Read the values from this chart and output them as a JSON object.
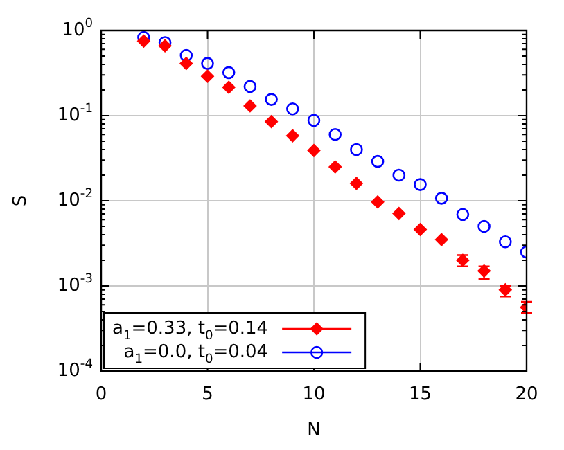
{
  "chart_data": {
    "type": "scatter",
    "xlabel": "N",
    "ylabel": "S",
    "log": "y",
    "xlim": [
      0,
      20
    ],
    "xticks": [
      0,
      5,
      10,
      15,
      20
    ],
    "ylim": [
      0.0001,
      1
    ],
    "yticks": [
      {
        "value": 1,
        "label": "10$^{0}$"
      },
      {
        "value": 0.1,
        "label": "10$^{-1}$"
      },
      {
        "value": 0.01,
        "label": "10$^{-2}$"
      },
      {
        "value": 0.001,
        "label": "10$^{-3}$"
      },
      {
        "value": 0.0001,
        "label": "10$^{-4}$"
      }
    ],
    "grid": true,
    "legend": "bottom left",
    "x": [
      2,
      3,
      4,
      5,
      6,
      7,
      8,
      9,
      10,
      11,
      12,
      13,
      14,
      15,
      16,
      17,
      18,
      19,
      20
    ],
    "series": [
      {
        "name": "a$_{1}$=0.33, t$_{0}$=0.14",
        "color": "#ff0000",
        "marker": "diamond",
        "values": [
          0.75,
          0.66,
          0.41,
          0.29,
          0.215,
          0.13,
          0.085,
          0.058,
          0.039,
          0.025,
          0.016,
          0.0097,
          0.0071,
          0.0046,
          0.0035,
          0.002,
          0.0015,
          0.0009,
          0.00056
        ],
        "errors": [
          null,
          null,
          null,
          null,
          null,
          null,
          null,
          null,
          null,
          null,
          null,
          null,
          null,
          null,
          null,
          [
            0.0017,
            0.0023
          ],
          [
            0.0012,
            0.0017
          ],
          [
            0.00075,
            0.001
          ],
          [
            0.00048,
            0.00065
          ]
        ]
      },
      {
        "name": "a$_{1}$=0.0, t$_{0}$=0.04",
        "color": "#0000ff",
        "marker": "circle",
        "values": [
          0.83,
          0.72,
          0.51,
          0.41,
          0.32,
          0.22,
          0.155,
          0.12,
          0.088,
          0.06,
          0.04,
          0.029,
          0.02,
          0.0155,
          0.0107,
          0.0069,
          0.005,
          0.0033,
          0.0025
        ]
      }
    ]
  }
}
